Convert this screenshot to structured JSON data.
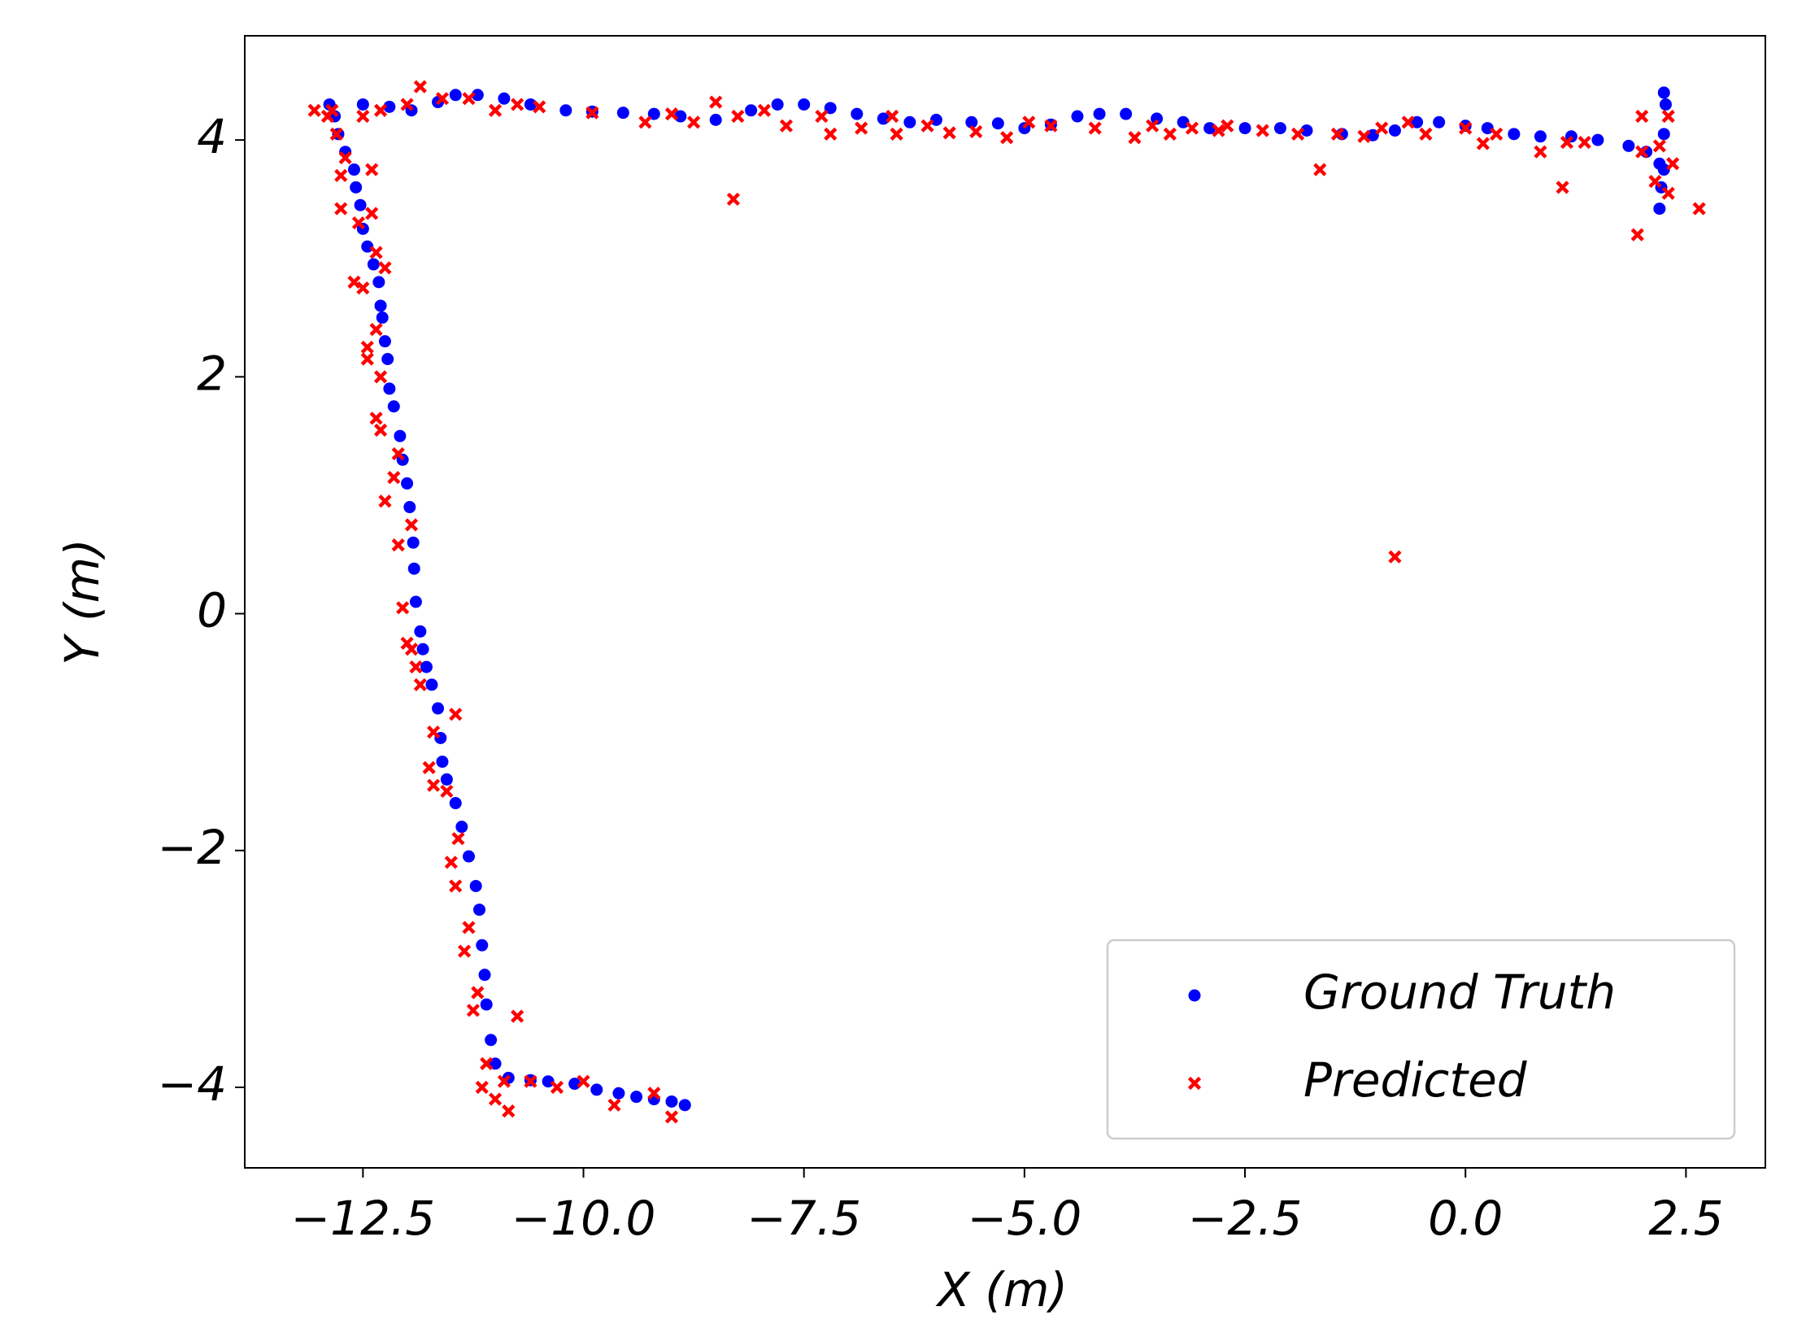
{
  "chart_data": {
    "type": "scatter",
    "xlabel": "X (m)",
    "ylabel": "Y (m)",
    "xlim": [
      -13.84,
      3.4
    ],
    "ylim": [
      -4.68,
      4.88
    ],
    "xticks": [
      {
        "value": -12.5,
        "label": "−12.5"
      },
      {
        "value": -10,
        "label": "−10.0"
      },
      {
        "value": -7.5,
        "label": "−7.5"
      },
      {
        "value": -5,
        "label": "−5.0"
      },
      {
        "value": -2.5,
        "label": "−2.5"
      },
      {
        "value": 0,
        "label": "0.0"
      },
      2.5
    ],
    "yticks": [
      {
        "value": -4,
        "label": "−4"
      },
      {
        "value": -2,
        "label": "−2"
      },
      0,
      2,
      4
    ],
    "grid": false,
    "legend": "lower right",
    "series": [
      {
        "name": "Ground Truth",
        "color": "#0000ff",
        "marker": "circle",
        "x": [
          -8.85,
          -9.0,
          -9.2,
          -9.4,
          -9.6,
          -9.85,
          -10.1,
          -10.4,
          -10.6,
          -10.85,
          -11.0,
          -11.05,
          -11.1,
          -11.12,
          -11.15,
          -11.18,
          -11.22,
          -11.3,
          -11.38,
          -11.45,
          -11.55,
          -11.6,
          -11.62,
          -11.65,
          -11.72,
          -11.78,
          -11.82,
          -11.85,
          -11.9,
          -11.92,
          -11.93,
          -11.97,
          -12.0,
          -12.05,
          -12.08,
          -12.15,
          -12.2,
          -12.22,
          -12.25,
          -12.28,
          -12.3,
          -12.32,
          -12.38,
          -12.45,
          -12.5,
          -12.53,
          -12.58,
          -12.6,
          -12.7,
          -12.78,
          -12.82,
          -12.88,
          -12.5,
          -12.2,
          -11.95,
          -11.65,
          -11.45,
          -11.2,
          -10.9,
          -10.6,
          -10.2,
          -9.9,
          -9.55,
          -9.2,
          -8.9,
          -8.5,
          -8.1,
          -7.8,
          -7.5,
          -7.2,
          -6.9,
          -6.6,
          -6.3,
          -6.0,
          -5.6,
          -5.3,
          -5.0,
          -4.7,
          -4.4,
          -4.15,
          -3.85,
          -3.5,
          -3.2,
          -2.9,
          -2.5,
          -2.1,
          -1.8,
          -1.4,
          -1.05,
          -0.8,
          -0.55,
          -0.3,
          0.0,
          0.25,
          0.55,
          0.85,
          1.2,
          1.5,
          1.85,
          2.05,
          2.2,
          2.22,
          2.2,
          2.25,
          2.25,
          2.27,
          2.25
        ],
        "y": [
          -4.15,
          -4.12,
          -4.1,
          -4.08,
          -4.05,
          -4.02,
          -3.97,
          -3.95,
          -3.94,
          -3.92,
          -3.8,
          -3.6,
          -3.3,
          -3.05,
          -2.8,
          -2.5,
          -2.3,
          -2.05,
          -1.8,
          -1.6,
          -1.4,
          -1.25,
          -1.05,
          -0.8,
          -0.6,
          -0.45,
          -0.3,
          -0.15,
          0.1,
          0.38,
          0.6,
          0.9,
          1.1,
          1.3,
          1.5,
          1.75,
          1.9,
          2.15,
          2.3,
          2.5,
          2.6,
          2.8,
          2.95,
          3.1,
          3.25,
          3.45,
          3.6,
          3.75,
          3.9,
          4.05,
          4.2,
          4.3,
          4.3,
          4.28,
          4.25,
          4.32,
          4.38,
          4.38,
          4.35,
          4.3,
          4.25,
          4.24,
          4.23,
          4.22,
          4.2,
          4.17,
          4.25,
          4.3,
          4.3,
          4.27,
          4.22,
          4.18,
          4.15,
          4.17,
          4.15,
          4.14,
          4.1,
          4.13,
          4.2,
          4.22,
          4.22,
          4.18,
          4.15,
          4.1,
          4.1,
          4.1,
          4.08,
          4.05,
          4.04,
          4.08,
          4.15,
          4.15,
          4.12,
          4.1,
          4.05,
          4.03,
          4.03,
          4.0,
          3.95,
          3.9,
          3.8,
          3.6,
          3.42,
          3.75,
          4.05,
          4.3,
          4.4
        ]
      },
      {
        "name": "Predicted",
        "color": "#ff0000",
        "marker": "x",
        "x": [
          -8.3,
          -0.8,
          1.95,
          2.65,
          -1.65,
          1.1,
          -9.0,
          -9.2,
          -9.65,
          -10.0,
          -10.3,
          -10.6,
          -10.85,
          -11.0,
          -11.15,
          -10.75,
          -11.1,
          -10.9,
          -11.2,
          -11.25,
          -11.35,
          -11.3,
          -11.45,
          -11.5,
          -11.42,
          -11.55,
          -11.45,
          -11.7,
          -11.75,
          -11.7,
          -11.85,
          -11.9,
          -11.95,
          -12.05,
          -12.0,
          -11.95,
          -12.1,
          -12.25,
          -12.15,
          -12.1,
          -12.3,
          -12.35,
          -12.3,
          -12.45,
          -12.45,
          -12.5,
          -12.6,
          -12.35,
          -12.25,
          -12.35,
          -12.4,
          -12.55,
          -12.75,
          -12.4,
          -12.75,
          -12.7,
          -12.8,
          -12.85,
          -13.05,
          -12.9,
          -12.5,
          -12.3,
          -12.0,
          -11.85,
          -11.6,
          -11.3,
          -11.0,
          -10.75,
          -10.5,
          -9.9,
          -9.3,
          -9.0,
          -8.75,
          -8.5,
          -8.25,
          -7.95,
          -7.7,
          -7.3,
          -7.2,
          -6.85,
          -6.5,
          -6.45,
          -6.1,
          -5.85,
          -5.55,
          -5.2,
          -4.95,
          -4.7,
          -4.2,
          -3.75,
          -3.55,
          -3.35,
          -3.1,
          -2.8,
          -2.7,
          -2.3,
          -1.9,
          -1.45,
          -1.15,
          -0.95,
          -0.65,
          -0.45,
          0.0,
          0.2,
          0.35,
          0.85,
          1.15,
          1.35,
          2.0,
          2.15,
          2.3,
          2.35,
          2.2,
          2.3,
          2.0
        ],
        "y": [
          3.5,
          0.48,
          3.2,
          3.42,
          3.75,
          3.6,
          -4.25,
          -4.05,
          -4.15,
          -3.95,
          -4.0,
          -3.95,
          -4.2,
          -4.1,
          -4.0,
          -3.4,
          -3.8,
          -3.95,
          -3.2,
          -3.35,
          -2.85,
          -2.65,
          -2.3,
          -2.1,
          -1.9,
          -1.5,
          -0.85,
          -1.0,
          -1.3,
          -1.45,
          -0.6,
          -0.45,
          -0.3,
          0.05,
          -0.25,
          0.75,
          0.58,
          0.95,
          1.15,
          1.35,
          1.55,
          1.65,
          2.0,
          2.15,
          2.25,
          2.75,
          2.8,
          2.4,
          2.92,
          3.05,
          3.38,
          3.3,
          3.42,
          3.75,
          3.7,
          3.85,
          4.05,
          4.25,
          4.25,
          4.2,
          4.2,
          4.25,
          4.3,
          4.45,
          4.35,
          4.35,
          4.25,
          4.3,
          4.28,
          4.23,
          4.15,
          4.22,
          4.15,
          4.32,
          4.2,
          4.25,
          4.12,
          4.2,
          4.05,
          4.1,
          4.2,
          4.05,
          4.12,
          4.06,
          4.07,
          4.02,
          4.15,
          4.12,
          4.1,
          4.02,
          4.12,
          4.05,
          4.1,
          4.08,
          4.12,
          4.08,
          4.05,
          4.05,
          4.03,
          4.1,
          4.15,
          4.05,
          4.1,
          3.97,
          4.05,
          3.9,
          3.98,
          3.98,
          4.2,
          3.65,
          3.55,
          3.8,
          3.95,
          4.2,
          3.9
        ]
      }
    ]
  }
}
